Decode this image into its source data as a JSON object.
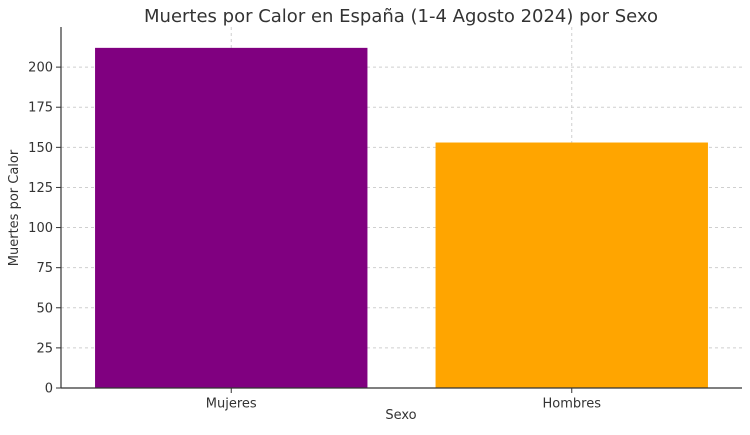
{
  "chart_data": {
    "type": "bar",
    "title": "Muertes por Calor en España (1-4 Agosto 2024) por Sexo",
    "xlabel": "Sexo",
    "ylabel": "Muertes por Calor",
    "categories": [
      "Mujeres",
      "Hombres"
    ],
    "values": [
      212,
      153
    ],
    "colors": [
      "#800080",
      "#ffa500"
    ],
    "ylim": [
      0,
      225
    ],
    "yticks": [
      0,
      25,
      50,
      75,
      100,
      125,
      150,
      175,
      200
    ],
    "grid": true,
    "legend": "none"
  }
}
